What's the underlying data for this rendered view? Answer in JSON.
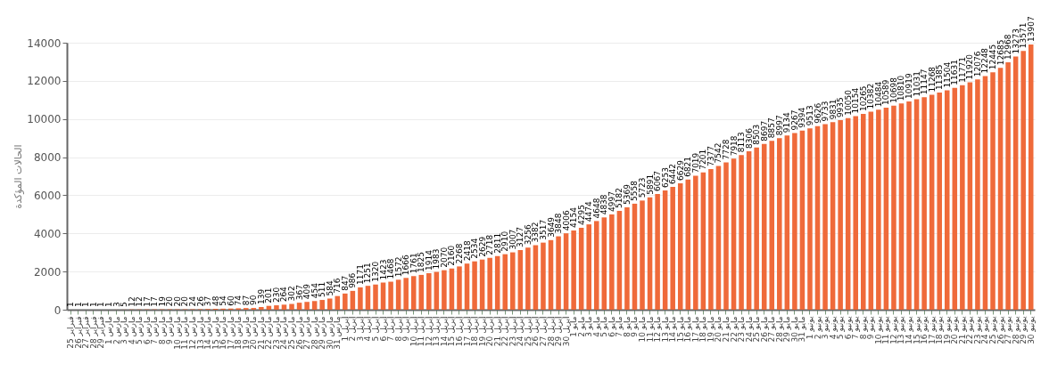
{
  "chart_data": {
    "type": "bar",
    "ylabel": "الحالات المؤكدة",
    "categories": [
      "25 فبراير",
      "26 فبراير",
      "27 فبراير",
      "28 فبراير",
      "29 فبراير",
      "1 مارس",
      "2 مارس",
      "3 مارس",
      "4 مارس",
      "5 مارس",
      "6 مارس",
      "7 مارس",
      "8 مارس",
      "9 مارس",
      "10 مارس",
      "11 مارس",
      "12 مارس",
      "13 مارس",
      "14 مارس",
      "15 مارس",
      "16 مارس",
      "17 مارس",
      "18 مارس",
      "19 مارس",
      "20 مارس",
      "21 مارس",
      "22 مارس",
      "23 مارس",
      "24 مارس",
      "25 مارس",
      "26 مارس",
      "27 مارس",
      "28 مارس",
      "29 مارس",
      "30 مارس",
      "31 مارس",
      "1 أبريل",
      "2 أبريل",
      "3 أبريل",
      "4 أبريل",
      "5 أبريل",
      "6 أبريل",
      "7 أبريل",
      "8 أبريل",
      "9 أبريل",
      "10 أبريل",
      "11 أبريل",
      "12 أبريل",
      "13 أبريل",
      "14 أبريل",
      "15 أبريل",
      "16 أبريل",
      "17 أبريل",
      "18 أبريل",
      "19 أبريل",
      "20 أبريل",
      "21 أبريل",
      "22 أبريل",
      "23 أبريل",
      "24 أبريل",
      "25 أبريل",
      "26 أبريل",
      "27 أبريل",
      "28 أبريل",
      "29 أبريل",
      "30 أبريل",
      "1 مايو",
      "2 مايو",
      "3 مايو",
      "4 مايو",
      "5 مايو",
      "6 مايو",
      "7 مايو",
      "8 مايو",
      "9 مايو",
      "10 مايو",
      "11 مايو",
      "12 مايو",
      "13 مايو",
      "14 مايو",
      "15 مايو",
      "16 مايو",
      "17 مايو",
      "18 مايو",
      "19 مايو",
      "20 مايو",
      "21 مايو",
      "22 مايو",
      "23 مايو",
      "24 مايو",
      "25 مايو",
      "26 مايو",
      "27 مايو",
      "28 مايو",
      "29 مايو",
      "30 مايو",
      "31 مايو",
      "1 يونيو",
      "2 يونيو",
      "3 يونيو",
      "4 يونيو",
      "5 يونيو",
      "6 يونيو",
      "7 يونيو",
      "8 يونيو",
      "9 يونيو",
      "10 يونيو",
      "11 يونيو",
      "12 يونيو",
      "13 يونيو",
      "14 يونيو",
      "15 يونيو",
      "16 يونيو",
      "17 يونيو",
      "18 يونيو",
      "19 يونيو",
      "20 يونيو",
      "21 يونيو",
      "22 يونيو",
      "23 يونيو",
      "24 يونيو",
      "25 يونيو",
      "26 يونيو",
      "27 يونيو",
      "28 يونيو",
      "29 يونيو",
      "30 يونيو"
    ],
    "values": [
      1,
      1,
      1,
      1,
      1,
      1,
      3,
      5,
      12,
      12,
      17,
      17,
      19,
      20,
      20,
      20,
      24,
      26,
      37,
      48,
      54,
      60,
      74,
      87,
      90,
      139,
      201,
      230,
      264,
      302,
      367,
      409,
      454,
      511,
      584,
      716,
      847,
      986,
      1171,
      1251,
      1320,
      1423,
      1468,
      1572,
      1666,
      1761,
      1825,
      1914,
      1983,
      2070,
      2160,
      2268,
      2418,
      2534,
      2629,
      2718,
      2811,
      2910,
      3007,
      3127,
      3256,
      3382,
      3517,
      3649,
      3848,
      4006,
      4154,
      4295,
      4474,
      4648,
      4838,
      4997,
      5182,
      5369,
      5558,
      5723,
      5891,
      6067,
      6253,
      6442,
      6629,
      6821,
      7019,
      7201,
      7377,
      7542,
      7728,
      7918,
      8113,
      8306,
      8503,
      8697,
      8857,
      8997,
      9134,
      9267,
      9394,
      9513,
      9626,
      9733,
      9831,
      9935,
      10050,
      10154,
      10265,
      10382,
      10484,
      10589,
      10698,
      10810,
      10919,
      11031,
      11147,
      11268,
      11385,
      11504,
      11631,
      11771,
      11920,
      12076,
      12248,
      12445,
      12685,
      12968,
      13273,
      13571,
      13907
    ],
    "color": "#ef6a3a",
    "ylim": [
      0,
      14000
    ],
    "yticks": [
      0,
      2000,
      4000,
      6000,
      8000,
      10000,
      12000,
      14000
    ],
    "grid": "y",
    "data_labels": true
  }
}
